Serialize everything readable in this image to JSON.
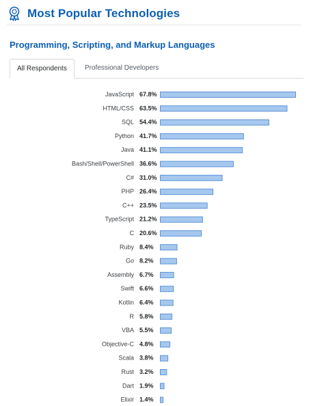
{
  "header": {
    "title": "Most Popular Technologies"
  },
  "section": {
    "title": "Programming, Scripting, and Markup Languages"
  },
  "tabs": [
    {
      "label": "All Respondents",
      "active": true
    },
    {
      "label": "Professional Developers",
      "active": false
    }
  ],
  "colors": {
    "accent": "#0c5fb3",
    "bar_fill": "#a6c8ee",
    "bar_stroke": "#5b93d8"
  },
  "chart_data": {
    "type": "bar",
    "orientation": "horizontal",
    "categories": [
      "JavaScript",
      "HTML/CSS",
      "SQL",
      "Python",
      "Java",
      "Bash/Shell/PowerShell",
      "C#",
      "PHP",
      "C++",
      "TypeScript",
      "C",
      "Ruby",
      "Go",
      "Assembly",
      "Swift",
      "Kotlin",
      "R",
      "VBA",
      "Objective-C",
      "Scala",
      "Rust",
      "Dart",
      "Elixir"
    ],
    "values": [
      67.8,
      63.5,
      54.4,
      41.7,
      41.1,
      36.6,
      31.0,
      26.4,
      23.5,
      21.2,
      20.6,
      8.4,
      8.2,
      6.7,
      6.6,
      6.4,
      5.8,
      5.5,
      4.8,
      3.8,
      3.2,
      1.9,
      1.4
    ],
    "value_labels": [
      "67.8%",
      "63.5%",
      "54.4%",
      "41.7%",
      "41.1%",
      "36.6%",
      "31.0%",
      "26.4%",
      "23.5%",
      "21.2%",
      "20.6%",
      "8.4%",
      "8.2%",
      "6.7%",
      "6.6%",
      "6.4%",
      "5.8%",
      "5.5%",
      "4.8%",
      "3.8%",
      "3.2%",
      "1.9%",
      "1.4%"
    ],
    "unit": "%",
    "xlim": [
      0,
      67.8
    ],
    "grid": false,
    "legend": "none"
  }
}
